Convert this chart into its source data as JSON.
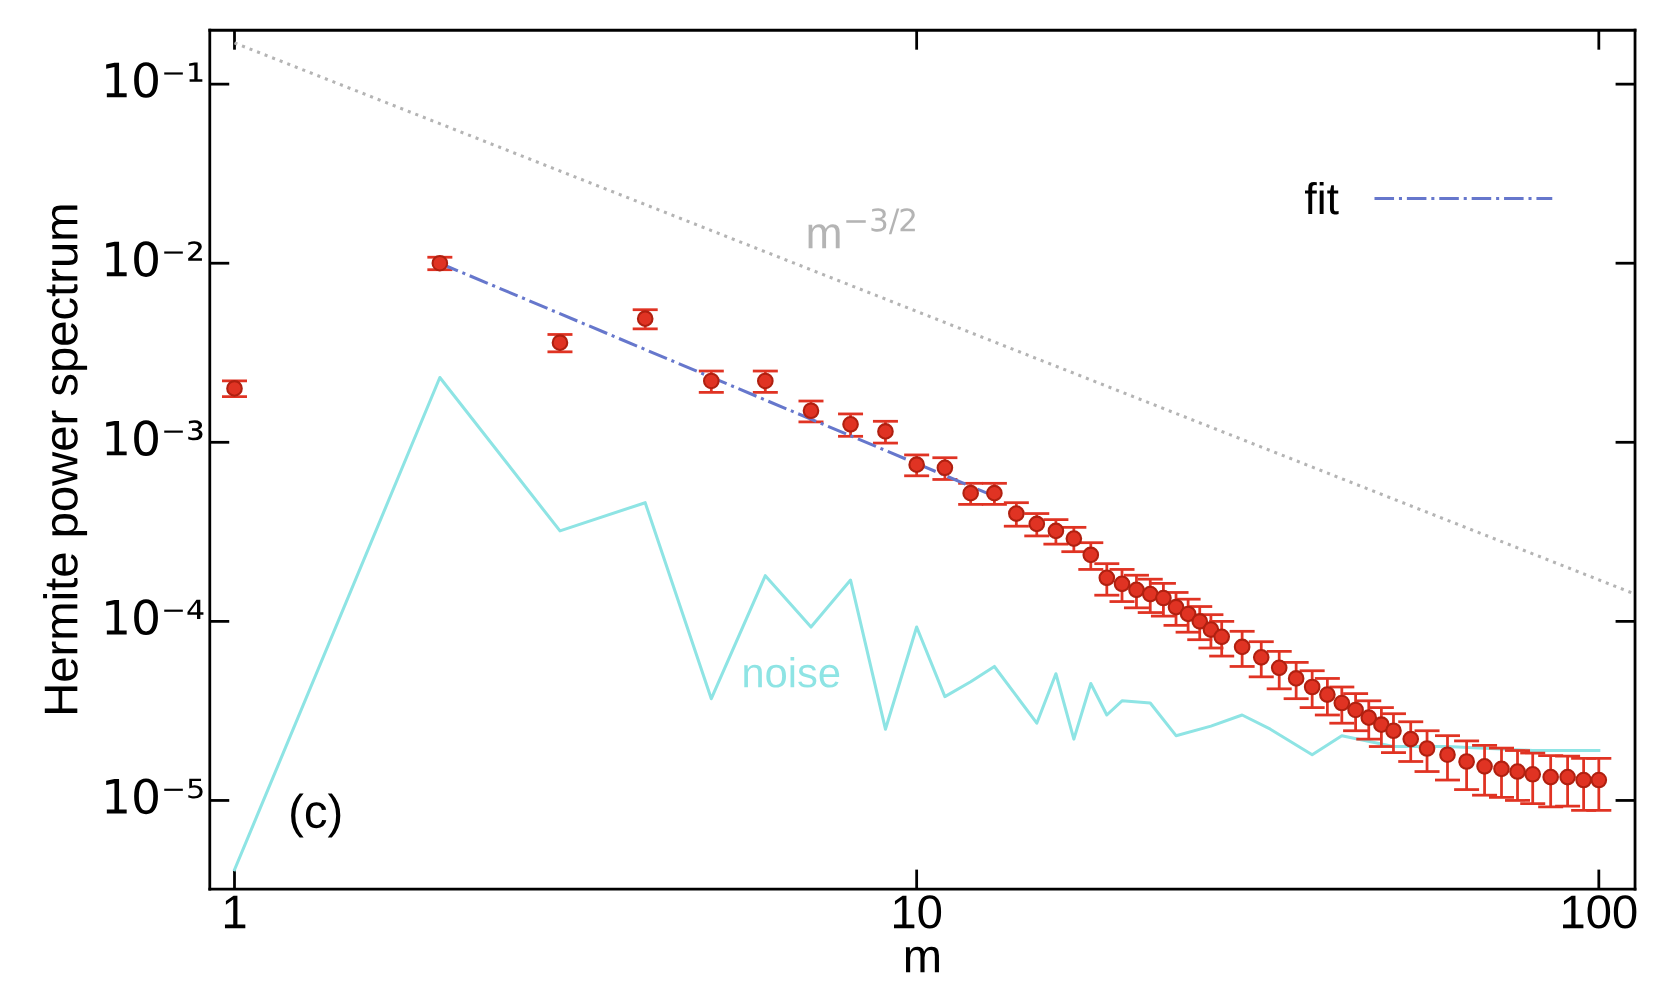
{
  "chart_data": {
    "type": "scatter",
    "xlabel": "m",
    "ylabel": "Hermite power spectrum",
    "log": "xy",
    "grid": false,
    "legend": "top right",
    "xlim": [
      0.92,
      113
    ],
    "ylim": [
      3.2e-06,
      0.2
    ],
    "xticks": [
      1,
      10,
      100
    ],
    "yticks": [
      {
        "value": 1e-05,
        "label": "10⁻⁵"
      },
      {
        "value": 0.0001,
        "label": "10⁻⁴"
      },
      {
        "value": 0.001,
        "label": "10⁻³"
      },
      {
        "value": 0.01,
        "label": "10⁻²"
      },
      {
        "value": 0.1,
        "label": "10⁻¹"
      }
    ],
    "series": [
      {
        "type": "line",
        "color": "#b4b4b4",
        "line_style": "dotted",
        "marker": "none",
        "x": [
          1,
          113
        ],
        "values": [
          0.17,
          0.000142
        ]
      },
      {
        "type": "line",
        "color": "#8ee4e4",
        "line_style": "solid",
        "marker": "none",
        "x": [
          1,
          2,
          3,
          4,
          5,
          6,
          7,
          8,
          9,
          10,
          11,
          12,
          13,
          15,
          16,
          17,
          18,
          19,
          20,
          22,
          24,
          27,
          30,
          33,
          38,
          42,
          50,
          60,
          80,
          100
        ],
        "values": [
          4.1e-06,
          0.0023,
          0.00032,
          0.00046,
          3.7e-05,
          0.00018,
          9.3e-05,
          0.00017,
          2.5e-05,
          9.3e-05,
          3.8e-05,
          4.6e-05,
          5.6e-05,
          2.7e-05,
          5.1e-05,
          2.2e-05,
          4.5e-05,
          3e-05,
          3.6e-05,
          3.5e-05,
          2.3e-05,
          2.6e-05,
          3e-05,
          2.5e-05,
          1.8e-05,
          2.3e-05,
          2e-05,
          2e-05,
          1.9e-05,
          1.9e-05
        ]
      },
      {
        "color": "#e03323",
        "marker": "circle",
        "x": [
          1,
          2,
          3,
          4,
          5,
          6,
          7,
          8,
          9,
          10,
          11,
          12,
          13,
          14,
          15,
          16,
          17,
          18,
          19,
          20,
          21,
          22,
          23,
          24,
          25,
          26,
          27,
          28,
          30,
          32,
          34,
          36,
          38,
          40,
          42,
          44,
          46,
          48,
          50,
          53,
          56,
          60,
          64,
          68,
          72,
          76,
          80,
          85,
          90,
          95,
          100
        ],
        "values": [
          0.002,
          0.01,
          0.0036,
          0.0049,
          0.0022,
          0.0022,
          0.0015,
          0.00126,
          0.00115,
          0.00075,
          0.00072,
          0.00052,
          0.00052,
          0.0004,
          0.00035,
          0.00032,
          0.00029,
          0.000235,
          0.000175,
          0.000162,
          0.00015,
          0.000142,
          0.000135,
          0.00012,
          0.00011,
          0.0001,
          9e-05,
          8.2e-05,
          7.2e-05,
          6.3e-05,
          5.5e-05,
          4.8e-05,
          4.3e-05,
          3.9e-05,
          3.5e-05,
          3.2e-05,
          2.9e-05,
          2.65e-05,
          2.45e-05,
          2.2e-05,
          1.95e-05,
          1.8e-05,
          1.65e-05,
          1.55e-05,
          1.5e-05,
          1.45e-05,
          1.4e-05,
          1.35e-05,
          1.35e-05,
          1.3e-05,
          1.3e-05
        ],
        "errors": [
          0.0002,
          0.0008,
          0.0004,
          0.0006,
          0.0003,
          0.0003,
          0.0002,
          0.00018,
          0.00016,
          0.0001,
          0.0001,
          7e-05,
          7e-05,
          6e-05,
          5e-05,
          5e-05,
          4.5e-05,
          4e-05,
          3.5e-05,
          3.3e-05,
          3.1e-05,
          3e-05,
          2.8e-05,
          2.5e-05,
          2.3e-05,
          2.1e-05,
          1.9e-05,
          1.8e-05,
          1.6e-05,
          1.4e-05,
          1.3e-05,
          1.1e-05,
          1e-05,
          9e-06,
          8e-06,
          7.5e-06,
          7e-06,
          6.5e-06,
          6e-06,
          5.5e-06,
          5e-06,
          5e-06,
          5e-06,
          4.8e-06,
          4.6e-06,
          4.5e-06,
          4.4e-06,
          4.3e-06,
          4.2e-06,
          4.2e-06,
          4.2e-06
        ]
      },
      {
        "type": "line",
        "name": "fit",
        "color": "#6677cc",
        "line_style": "dashdot",
        "marker": "none",
        "x": [
          2,
          13
        ],
        "values": [
          0.01,
          0.0005
        ]
      }
    ],
    "annotations": [
      "m$^{−3/2}$",
      "noise",
      "(c)"
    ]
  }
}
